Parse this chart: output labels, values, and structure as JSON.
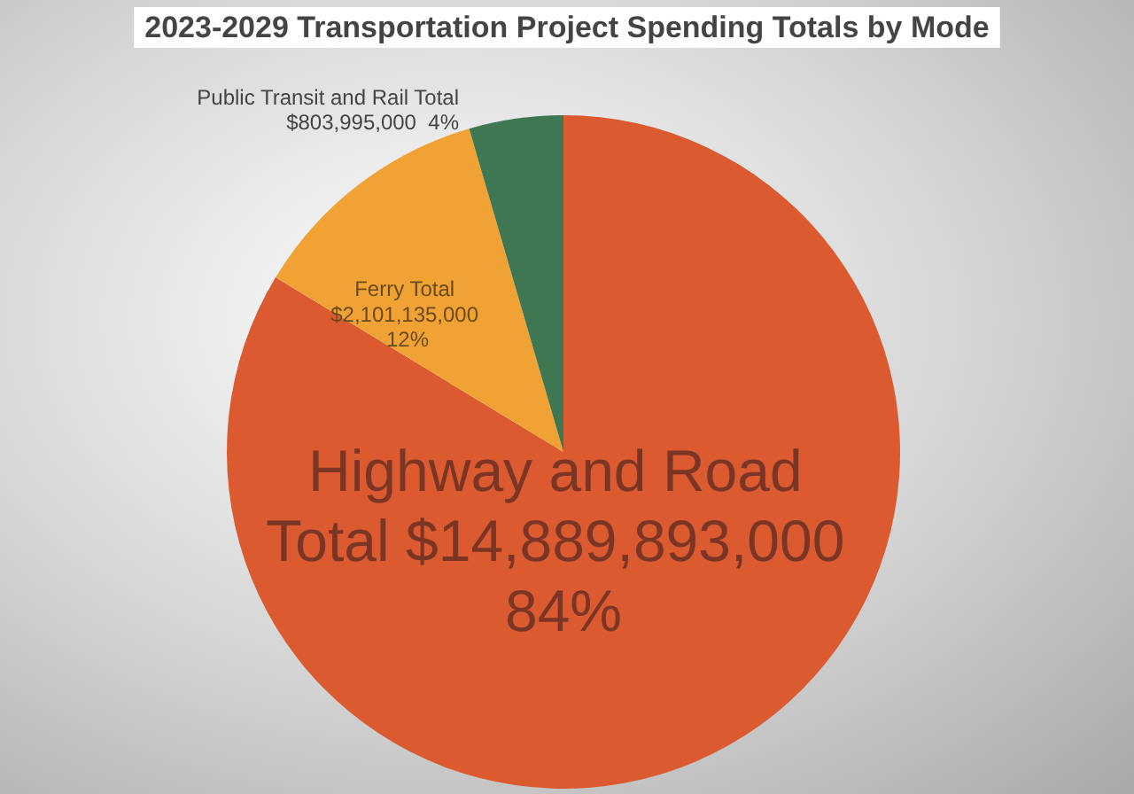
{
  "chart_data": {
    "type": "pie",
    "title": "2023-2029 Transportation Project Spending Totals by Mode",
    "categories": [
      "Highway and Road Total",
      "Ferry Total",
      "Public Transit and Rail Total"
    ],
    "values": [
      14889893000,
      2101135000,
      803995000
    ],
    "value_labels": [
      "$14,889,893,000 84%",
      "$2,101,135,000 12%",
      "$803,995,000  4%"
    ],
    "colors": [
      "#db5a2f",
      "#f0a234",
      "#3f7752"
    ],
    "legend": false
  }
}
